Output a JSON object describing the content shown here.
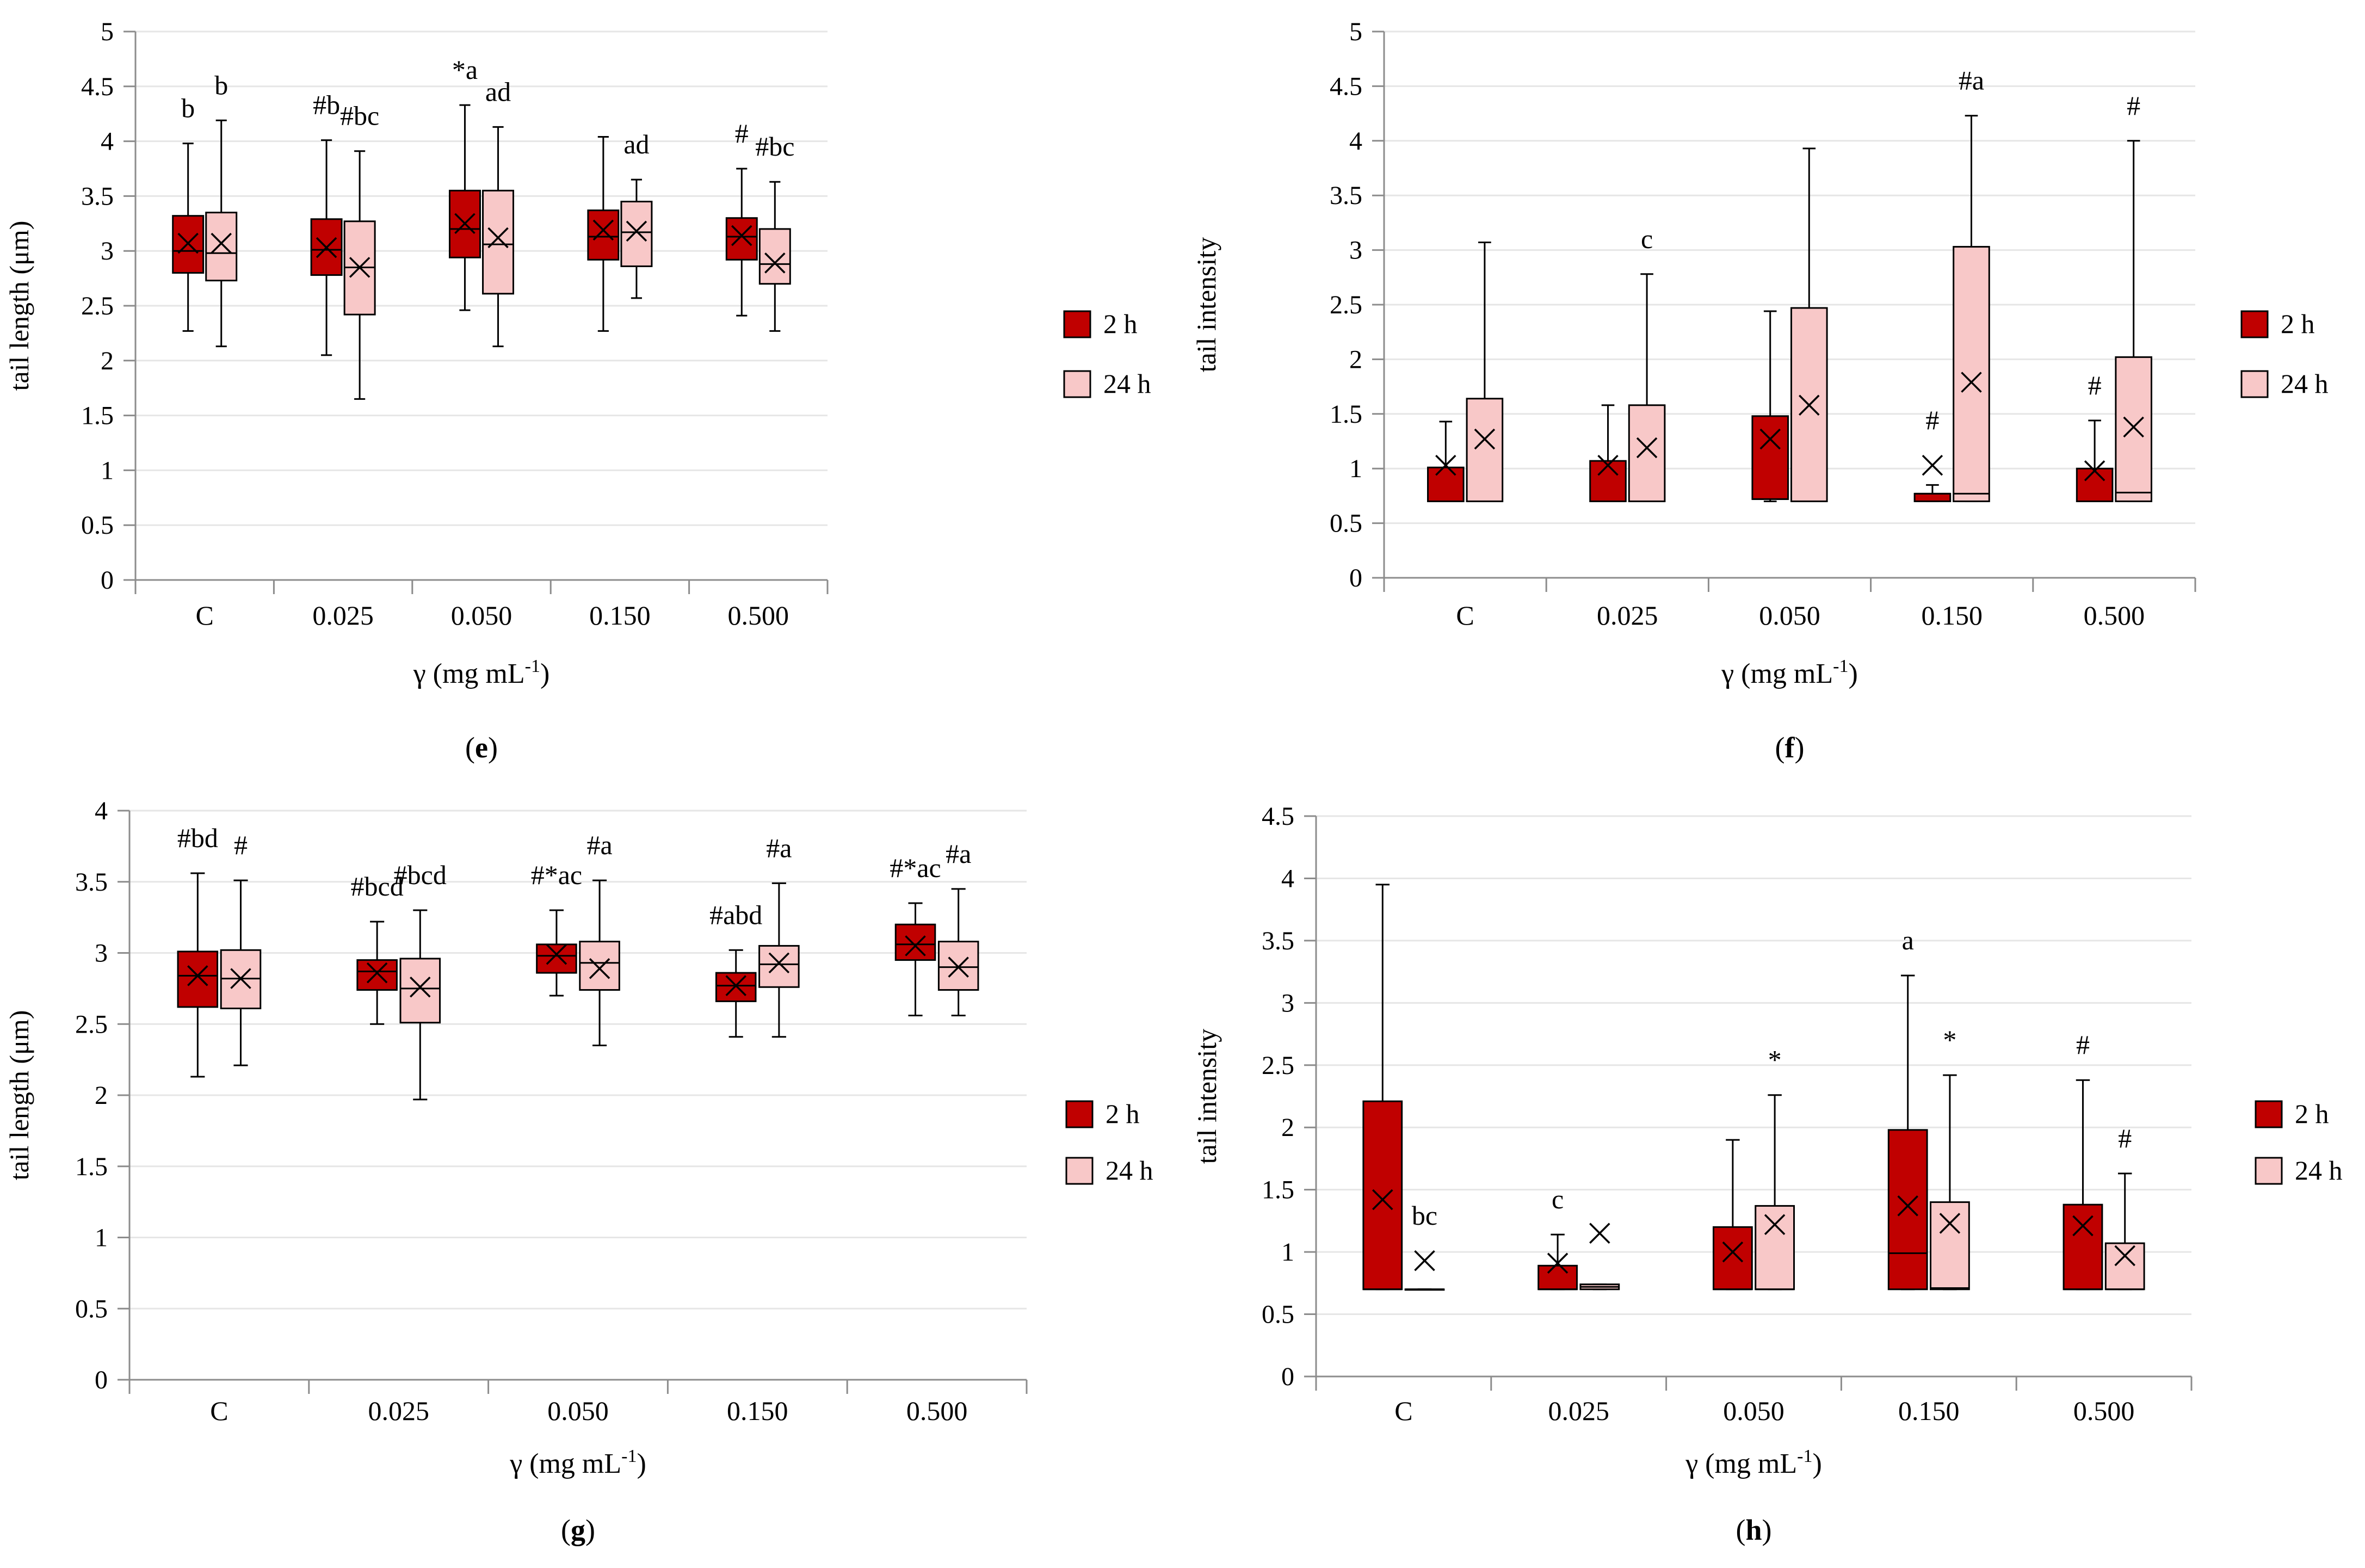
{
  "colors": {
    "h2": "#C00000",
    "h24": "#F8C8C8",
    "grid": "#E6E6E6",
    "axis": "#8C8C8C",
    "stroke": "#000000"
  },
  "chart_data": [
    {
      "id": "e",
      "type": "boxplot",
      "panel_label": "e",
      "title": "",
      "xlabel": "γ (mg mL",
      "xlabel_sup": "-1",
      "xlabel_tail": ")",
      "ylabel": "tail length (μm)",
      "ylim": [
        0,
        5
      ],
      "yticks": [
        "0",
        "0.5",
        "1",
        "1.5",
        "2",
        "2.5",
        "3",
        "3.5",
        "4",
        "4.5",
        "5"
      ],
      "categories": [
        "C",
        "0.025",
        "0.050",
        "0.150",
        "0.500"
      ],
      "legend": [
        "2 h",
        "24 h"
      ],
      "series": [
        {
          "name": "2 h",
          "boxes": [
            {
              "min": 2.27,
              "q1": 2.8,
              "median": 3.0,
              "q3": 3.32,
              "max": 3.98,
              "mean": 3.07,
              "label": "b"
            },
            {
              "min": 2.05,
              "q1": 2.78,
              "median": 3.01,
              "q3": 3.29,
              "max": 4.01,
              "mean": 3.03,
              "label": "#b"
            },
            {
              "min": 2.46,
              "q1": 2.94,
              "median": 3.2,
              "q3": 3.55,
              "max": 4.33,
              "mean": 3.25,
              "label": "*a"
            },
            {
              "min": 2.27,
              "q1": 2.92,
              "median": 3.13,
              "q3": 3.37,
              "max": 4.04,
              "mean": 3.19,
              "label": ""
            },
            {
              "min": 2.41,
              "q1": 2.92,
              "median": 3.13,
              "q3": 3.3,
              "max": 3.75,
              "mean": 3.14,
              "label": "#"
            }
          ]
        },
        {
          "name": "24 h",
          "boxes": [
            {
              "min": 2.13,
              "q1": 2.73,
              "median": 2.98,
              "q3": 3.35,
              "max": 4.19,
              "mean": 3.07,
              "label": "b"
            },
            {
              "min": 1.65,
              "q1": 2.42,
              "median": 2.85,
              "q3": 3.27,
              "max": 3.91,
              "mean": 2.85,
              "label": "#bc"
            },
            {
              "min": 2.13,
              "q1": 2.61,
              "median": 3.06,
              "q3": 3.55,
              "max": 4.13,
              "mean": 3.12,
              "label": "ad"
            },
            {
              "min": 2.57,
              "q1": 2.86,
              "median": 3.17,
              "q3": 3.45,
              "max": 3.65,
              "mean": 3.18,
              "label": "ad"
            },
            {
              "min": 2.27,
              "q1": 2.7,
              "median": 2.88,
              "q3": 3.2,
              "max": 3.63,
              "mean": 2.89,
              "label": "#bc"
            }
          ]
        }
      ]
    },
    {
      "id": "f",
      "type": "boxplot",
      "panel_label": "f",
      "title": "",
      "xlabel": "γ (mg mL",
      "xlabel_sup": "-1",
      "xlabel_tail": ")",
      "ylabel": "tail intensity",
      "ylim": [
        0,
        5
      ],
      "yticks": [
        "0",
        "0.5",
        "1",
        "1.5",
        "2",
        "2.5",
        "3",
        "3.5",
        "4",
        "4.5",
        "5"
      ],
      "categories": [
        "C",
        "0.025",
        "0.050",
        "0.150",
        "0.500"
      ],
      "legend": [
        "2 h",
        "24 h"
      ],
      "series": [
        {
          "name": "2 h",
          "boxes": [
            {
              "min": 0.7,
              "q1": 0.7,
              "median": 0.7,
              "q3": 1.01,
              "max": 1.43,
              "mean": 1.03,
              "label": ""
            },
            {
              "min": 0.7,
              "q1": 0.7,
              "median": 0.7,
              "q3": 1.07,
              "max": 1.58,
              "mean": 1.03,
              "label": ""
            },
            {
              "min": 0.7,
              "q1": 0.72,
              "median": 0.72,
              "q3": 1.48,
              "max": 2.44,
              "mean": 1.27,
              "label": ""
            },
            {
              "min": 0.7,
              "q1": 0.7,
              "median": 0.77,
              "q3": 0.77,
              "max": 0.85,
              "mean": 1.03,
              "label": "#"
            },
            {
              "min": 0.7,
              "q1": 0.7,
              "median": 0.7,
              "q3": 1.0,
              "max": 1.44,
              "mean": 0.98,
              "label": "#"
            }
          ]
        },
        {
          "name": "24 h",
          "boxes": [
            {
              "min": 0.7,
              "q1": 0.7,
              "median": 0.7,
              "q3": 1.64,
              "max": 3.07,
              "mean": 1.27,
              "label": ""
            },
            {
              "min": 0.7,
              "q1": 0.7,
              "median": 0.7,
              "q3": 1.58,
              "max": 2.78,
              "mean": 1.19,
              "label": "c"
            },
            {
              "min": 0.7,
              "q1": 0.7,
              "median": 0.7,
              "q3": 2.47,
              "max": 3.93,
              "mean": 1.58,
              "label": ""
            },
            {
              "min": 0.7,
              "q1": 0.7,
              "median": 0.77,
              "q3": 3.03,
              "max": 4.23,
              "mean": 1.79,
              "label": "#a"
            },
            {
              "min": 0.7,
              "q1": 0.7,
              "median": 0.78,
              "q3": 2.02,
              "max": 4.0,
              "mean": 1.38,
              "label": "#"
            }
          ]
        }
      ]
    },
    {
      "id": "g",
      "type": "boxplot",
      "panel_label": "g",
      "title": "",
      "xlabel": "γ (mg mL",
      "xlabel_sup": "-1",
      "xlabel_tail": ")",
      "ylabel": "tail length (μm)",
      "ylim": [
        0,
        4
      ],
      "yticks": [
        "0",
        "0.5",
        "1",
        "1.5",
        "2",
        "2.5",
        "3",
        "3.5",
        "4"
      ],
      "categories": [
        "C",
        "0.025",
        "0.050",
        "0.150",
        "0.500"
      ],
      "legend": [
        "2 h",
        "24 h"
      ],
      "series": [
        {
          "name": "2 h",
          "boxes": [
            {
              "min": 2.13,
              "q1": 2.62,
              "median": 2.84,
              "q3": 3.01,
              "max": 3.56,
              "mean": 2.84,
              "label": "#bd"
            },
            {
              "min": 2.5,
              "q1": 2.74,
              "median": 2.87,
              "q3": 2.95,
              "max": 3.22,
              "mean": 2.86,
              "label": "#bcd"
            },
            {
              "min": 2.7,
              "q1": 2.86,
              "median": 2.98,
              "q3": 3.06,
              "max": 3.3,
              "mean": 2.99,
              "label": "#*ac"
            },
            {
              "min": 2.41,
              "q1": 2.66,
              "median": 2.77,
              "q3": 2.86,
              "max": 3.02,
              "mean": 2.77,
              "label": "#abd"
            },
            {
              "min": 2.56,
              "q1": 2.95,
              "median": 3.06,
              "q3": 3.2,
              "max": 3.35,
              "mean": 3.05,
              "label": "#*ac"
            }
          ]
        },
        {
          "name": "24 h",
          "boxes": [
            {
              "min": 2.21,
              "q1": 2.61,
              "median": 2.82,
              "q3": 3.02,
              "max": 3.51,
              "mean": 2.82,
              "label": "#"
            },
            {
              "min": 1.97,
              "q1": 2.51,
              "median": 2.75,
              "q3": 2.96,
              "max": 3.3,
              "mean": 2.76,
              "label": "#bcd"
            },
            {
              "min": 2.35,
              "q1": 2.74,
              "median": 2.93,
              "q3": 3.08,
              "max": 3.51,
              "mean": 2.89,
              "label": "#a"
            },
            {
              "min": 2.41,
              "q1": 2.76,
              "median": 2.92,
              "q3": 3.05,
              "max": 3.49,
              "mean": 2.93,
              "label": "#a"
            },
            {
              "min": 2.56,
              "q1": 2.74,
              "median": 2.9,
              "q3": 3.08,
              "max": 3.45,
              "mean": 2.9,
              "label": "#a"
            }
          ]
        }
      ]
    },
    {
      "id": "h",
      "type": "boxplot",
      "panel_label": "h",
      "title": "",
      "xlabel": "γ (mg mL",
      "xlabel_sup": "-1",
      "xlabel_tail": ")",
      "ylabel": "tail intensity",
      "ylim": [
        0,
        4.5
      ],
      "yticks": [
        "0",
        "0.5",
        "1",
        "1.5",
        "2",
        "2.5",
        "3",
        "3.5",
        "4",
        "4.5"
      ],
      "categories": [
        "C",
        "0.025",
        "0.050",
        "0.150",
        "0.500"
      ],
      "legend": [
        "2 h",
        "24 h"
      ],
      "series": [
        {
          "name": "2 h",
          "boxes": [
            {
              "min": 0.7,
              "q1": 0.7,
              "median": 0.7,
              "q3": 2.21,
              "max": 3.95,
              "mean": 1.42,
              "label": ""
            },
            {
              "min": 0.7,
              "q1": 0.7,
              "median": 0.7,
              "q3": 0.89,
              "max": 1.14,
              "mean": 0.91,
              "label": "c"
            },
            {
              "min": 0.7,
              "q1": 0.7,
              "median": 0.7,
              "q3": 1.2,
              "max": 1.9,
              "mean": 1.0,
              "label": ""
            },
            {
              "min": 0.7,
              "q1": 0.7,
              "median": 0.99,
              "q3": 1.98,
              "max": 3.22,
              "mean": 1.37,
              "label": "a"
            },
            {
              "min": 0.7,
              "q1": 0.7,
              "median": 0.7,
              "q3": 1.38,
              "max": 2.38,
              "mean": 1.21,
              "label": "#"
            }
          ]
        },
        {
          "name": "24 h",
          "boxes": [
            {
              "min": 0.7,
              "q1": 0.7,
              "median": 0.7,
              "q3": 0.7,
              "max": 0.7,
              "mean": 0.93,
              "label": "bc"
            },
            {
              "min": 0.7,
              "q1": 0.7,
              "median": 0.72,
              "q3": 0.74,
              "max": 0.74,
              "mean": 1.15,
              "label": ""
            },
            {
              "min": 0.7,
              "q1": 0.7,
              "median": 0.7,
              "q3": 1.37,
              "max": 2.26,
              "mean": 1.22,
              "label": "*"
            },
            {
              "min": 0.7,
              "q1": 0.7,
              "median": 0.71,
              "q3": 1.4,
              "max": 2.42,
              "mean": 1.23,
              "label": "*"
            },
            {
              "min": 0.7,
              "q1": 0.7,
              "median": 0.7,
              "q3": 1.07,
              "max": 1.63,
              "mean": 0.97,
              "label": "#"
            }
          ]
        }
      ]
    }
  ]
}
